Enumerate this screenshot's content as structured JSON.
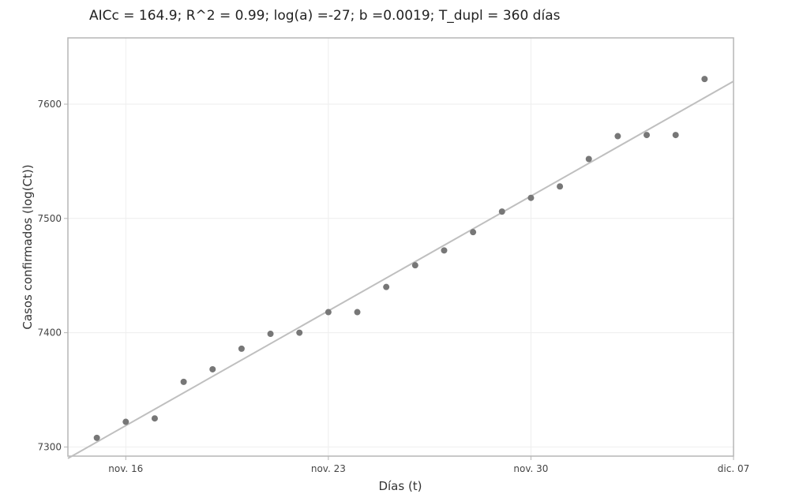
{
  "chart_data": {
    "type": "scatter",
    "title": "AICc = 164.9; R^2 = 0.99; log(a) =-27; b =0.0019; T_dupl = 360 días",
    "xlabel": "Días (t)",
    "ylabel": "Casos confirmados (log(Ct))",
    "x_tick_labels": [
      "nov. 16",
      "nov. 23",
      "nov. 30",
      "dic. 07"
    ],
    "y_tick_labels": [
      "7300",
      "7400",
      "7500",
      "7600"
    ],
    "x": [
      "2020-11-15",
      "2020-11-16",
      "2020-11-17",
      "2020-11-18",
      "2020-11-19",
      "2020-11-20",
      "2020-11-21",
      "2020-11-22",
      "2020-11-23",
      "2020-11-24",
      "2020-11-25",
      "2020-11-26",
      "2020-11-27",
      "2020-11-28",
      "2020-11-29",
      "2020-11-30",
      "2020-12-01",
      "2020-12-02",
      "2020-12-03",
      "2020-12-04",
      "2020-12-05",
      "2020-12-06"
    ],
    "series": [
      {
        "values": [
          7308,
          7322,
          7325,
          7357,
          7368,
          7386,
          7399,
          7400,
          7418,
          7418,
          7440,
          7459,
          7472,
          7488,
          7506,
          7518,
          7528,
          7552,
          7572,
          7573,
          7573,
          7622
        ],
        "color": "#777777"
      },
      {
        "type": "line",
        "x": [
          "2020-11-14",
          "2020-12-07"
        ],
        "values": [
          7290,
          7620
        ],
        "color": "#bfbfbf"
      }
    ],
    "xlim": [
      "2020-11-14",
      "2020-12-07"
    ],
    "ylim": [
      7292,
      7658
    ],
    "grid": true,
    "legend": "none"
  }
}
